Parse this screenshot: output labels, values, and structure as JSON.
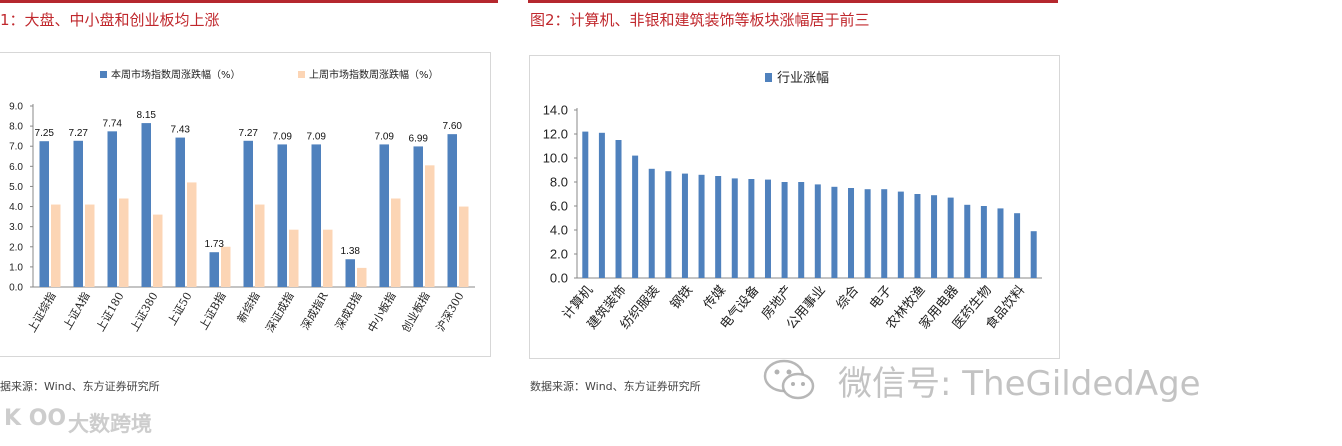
{
  "titles": {
    "left": "1：大盘、中小盘和创业板均上涨",
    "right": "图2：计算机、非银和建筑装饰等板块涨幅居于前三"
  },
  "sources": {
    "left": "据来源：Wind、东方证券研究所",
    "right": "数据来源：Wind、东方证券研究所"
  },
  "watermarks": {
    "wechat": "微信号: TheGildedAge",
    "brand_logo": "K OO",
    "brand_text": "大数跨境"
  },
  "colors": {
    "accent_red": "#b5282e",
    "bar_blue": "#4f81bd",
    "bar_peach": "#fcd5b5",
    "axis": "#888888"
  },
  "chart_data": [
    {
      "type": "bar",
      "categories": [
        "上证综指",
        "上证A指",
        "上证180",
        "上证380",
        "上证50",
        "上证B指",
        "新综指",
        "深证成指",
        "深成指R",
        "深成B指",
        "中小板指",
        "创业板指",
        "沪深300"
      ],
      "series": [
        {
          "name": "本周市场指数周涨跌幅（%）",
          "values": [
            7.25,
            7.27,
            7.74,
            8.15,
            7.43,
            1.73,
            7.27,
            7.09,
            7.09,
            1.38,
            7.09,
            6.99,
            7.6
          ],
          "color": "#4f81bd"
        },
        {
          "name": "上周市场指数周涨跌幅（%）",
          "values": [
            4.1,
            4.1,
            4.4,
            3.6,
            5.2,
            2.0,
            4.1,
            2.85,
            2.85,
            0.95,
            4.4,
            6.05,
            4.0
          ],
          "color": "#fcd5b5"
        }
      ],
      "data_labels": [
        "7.25",
        "7.27",
        "7.74",
        "8.15",
        "7.43",
        "1.73",
        "7.27",
        "7.09",
        "7.09",
        "1.38",
        "7.09",
        "6.99",
        "7.60"
      ],
      "yticks": [
        "0.0",
        "1.0",
        "2.0",
        "3.0",
        "4.0",
        "5.0",
        "6.0",
        "7.0",
        "8.0",
        "9.0"
      ],
      "ylim": [
        0,
        9
      ],
      "legend": "top",
      "grid": false
    },
    {
      "type": "bar",
      "categories": [
        "计算机",
        "建筑装饰",
        "纺织服装",
        "钢铁",
        "传媒",
        "电气设备",
        "房地产",
        "公用事业",
        "综合",
        "电子",
        "农林牧渔",
        "家用电器",
        "医药生物",
        "食品饮料"
      ],
      "bar_values": [
        12.2,
        12.1,
        11.5,
        10.2,
        9.1,
        8.9,
        8.7,
        8.6,
        8.5,
        8.3,
        8.25,
        8.2,
        8.0,
        8.0,
        7.8,
        7.6,
        7.5,
        7.4,
        7.4,
        7.2,
        7.0,
        6.9,
        6.7,
        6.1,
        6.0,
        5.8,
        5.4,
        3.9
      ],
      "series": [
        {
          "name": "行业涨幅",
          "color": "#4f81bd"
        }
      ],
      "yticks": [
        "0.0",
        "2.0",
        "4.0",
        "6.0",
        "8.0",
        "10.0",
        "12.0",
        "14.0"
      ],
      "ylim": [
        0,
        14
      ],
      "legend": "top",
      "grid": false
    }
  ]
}
